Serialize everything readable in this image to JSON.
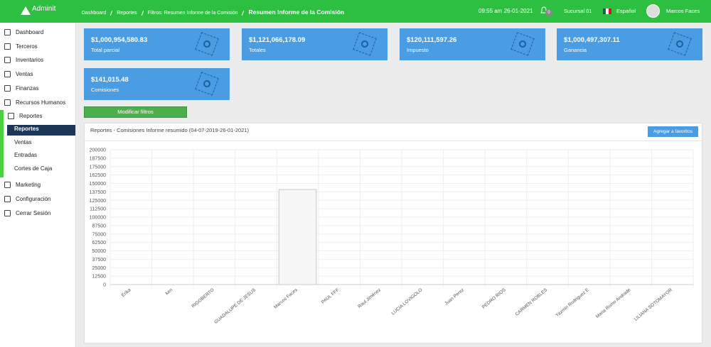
{
  "header": {
    "logo": "Adminit",
    "breadcrumbs": [
      "Dashboard",
      "Reportes",
      "Filtros: Resumen Informe de la Comisión"
    ],
    "current": "Resumen Informe de la Comisión",
    "datetime": "09:55 am 26-01-2021",
    "notifications": "0",
    "branch": "Sucursal 01",
    "language": "Español",
    "user": "Marcos Faces"
  },
  "sidebar": {
    "menu": [
      "Dashboard",
      "Terceros",
      "Inventarios",
      "Ventas",
      "Finanzas",
      "Recursos Humanos",
      "Reportes"
    ],
    "submenu": [
      "Reportes",
      "Ventas",
      "Entradas",
      "Cortes de Caja"
    ],
    "menu_bottom": [
      "Marketing",
      "Configuración",
      "Cerrar Sesión"
    ]
  },
  "cards": [
    {
      "value": "$1,000,954,580.83",
      "label": "Total parcial"
    },
    {
      "value": "$1,121,066,178.09",
      "label": "Totales"
    },
    {
      "value": "$120,111,597.26",
      "label": "Impuesto"
    },
    {
      "value": "$1,000,497,307.11",
      "label": "Ganancia"
    },
    {
      "value": "$141,015.48",
      "label": "Comisiones"
    }
  ],
  "filter_button": "Modificar filtros",
  "panel": {
    "title": "Reportes - Comisiones Informe resumido (04-07-2019-26-01-2021)",
    "favorite_button": "Agregar a favoritos"
  },
  "chart_data": {
    "type": "bar",
    "categories": [
      "Erika",
      "ken",
      "RIGOBERTO",
      "GUADALUPE DE JESUS",
      "Marcos Faces",
      "PAUL FFF",
      "Raul Jiménez",
      "LUCIA LOVIGOLO",
      "Juan Perez",
      "PEDRO RIOS",
      "CARMEN ROBLES",
      "Yazmin Rodriguez E",
      "Maria Romo Andrade",
      "LILIANA SOTOMAYOR"
    ],
    "values": [
      0,
      0,
      0,
      0,
      141015.48,
      0,
      0,
      0,
      0,
      0,
      0,
      0,
      0,
      0
    ],
    "color": "#f7f7f7",
    "ylim": [
      0,
      200000
    ],
    "yticks": [
      0,
      12500,
      25000,
      37500,
      50000,
      62500,
      75000,
      87500,
      100000,
      112500,
      125000,
      137500,
      150000,
      162500,
      175000,
      187500,
      200000
    ],
    "grid": true
  }
}
